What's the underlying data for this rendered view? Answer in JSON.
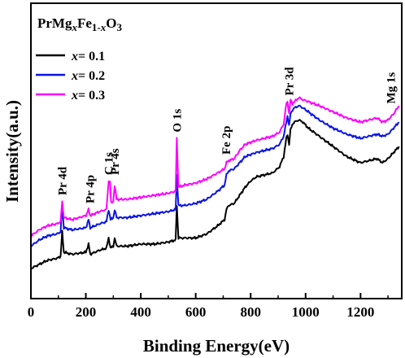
{
  "chart_data": {
    "type": "line",
    "title": {
      "prefix": "PrMg",
      "sub_x": "x",
      "mid": "Fe",
      "sub_mid": "1-",
      "sub_mid_x": "x",
      "suffix": "O",
      "sub_o": "3"
    },
    "xlabel": "Binding Energy(eV)",
    "ylabel": "Intensity(a.u.)",
    "xlim": [
      0,
      1350
    ],
    "ylim": [
      0,
      1
    ],
    "x_ticks": [
      0,
      200,
      400,
      600,
      800,
      1000,
      1200
    ],
    "grid": false,
    "legend_position": "top-left",
    "series": [
      {
        "name_x": "x",
        "name_rest": "= 0.1",
        "color": "#000000",
        "points": [
          [
            0,
            0.04
          ],
          [
            30,
            0.06
          ],
          [
            60,
            0.08
          ],
          [
            95,
            0.09
          ],
          [
            108,
            0.1
          ],
          [
            114,
            0.22
          ],
          [
            120,
            0.12
          ],
          [
            150,
            0.11
          ],
          [
            200,
            0.12
          ],
          [
            210,
            0.16
          ],
          [
            216,
            0.11
          ],
          [
            250,
            0.13
          ],
          [
            275,
            0.14
          ],
          [
            283,
            0.19
          ],
          [
            290,
            0.14
          ],
          [
            300,
            0.15
          ],
          [
            305,
            0.19
          ],
          [
            312,
            0.15
          ],
          [
            350,
            0.15
          ],
          [
            400,
            0.16
          ],
          [
            450,
            0.16
          ],
          [
            500,
            0.17
          ],
          [
            527,
            0.18
          ],
          [
            531,
            0.35
          ],
          [
            537,
            0.19
          ],
          [
            560,
            0.19
          ],
          [
            600,
            0.19
          ],
          [
            640,
            0.21
          ],
          [
            680,
            0.25
          ],
          [
            705,
            0.28
          ],
          [
            712,
            0.33
          ],
          [
            720,
            0.35
          ],
          [
            740,
            0.36
          ],
          [
            760,
            0.4
          ],
          [
            780,
            0.44
          ],
          [
            800,
            0.47
          ],
          [
            820,
            0.49
          ],
          [
            850,
            0.5
          ],
          [
            880,
            0.51
          ],
          [
            905,
            0.54
          ],
          [
            920,
            0.59
          ],
          [
            930,
            0.68
          ],
          [
            934,
            0.7
          ],
          [
            940,
            0.65
          ],
          [
            945,
            0.72
          ],
          [
            952,
            0.75
          ],
          [
            960,
            0.76
          ],
          [
            975,
            0.77
          ],
          [
            990,
            0.76
          ],
          [
            1010,
            0.73
          ],
          [
            1050,
            0.69
          ],
          [
            1100,
            0.64
          ],
          [
            1150,
            0.59
          ],
          [
            1200,
            0.56
          ],
          [
            1230,
            0.57
          ],
          [
            1260,
            0.58
          ],
          [
            1280,
            0.56
          ],
          [
            1300,
            0.58
          ],
          [
            1320,
            0.61
          ],
          [
            1340,
            0.64
          ]
        ]
      },
      {
        "name_x": "x",
        "name_rest": "= 0.2",
        "color": "#0a14e6",
        "points": [
          [
            0,
            0.15
          ],
          [
            30,
            0.18
          ],
          [
            60,
            0.2
          ],
          [
            95,
            0.21
          ],
          [
            108,
            0.22
          ],
          [
            114,
            0.35
          ],
          [
            120,
            0.24
          ],
          [
            150,
            0.23
          ],
          [
            200,
            0.24
          ],
          [
            210,
            0.28
          ],
          [
            216,
            0.24
          ],
          [
            250,
            0.26
          ],
          [
            275,
            0.27
          ],
          [
            283,
            0.33
          ],
          [
            290,
            0.28
          ],
          [
            300,
            0.29
          ],
          [
            305,
            0.33
          ],
          [
            312,
            0.29
          ],
          [
            350,
            0.29
          ],
          [
            400,
            0.3
          ],
          [
            450,
            0.31
          ],
          [
            500,
            0.32
          ],
          [
            527,
            0.33
          ],
          [
            531,
            0.5
          ],
          [
            537,
            0.35
          ],
          [
            560,
            0.35
          ],
          [
            600,
            0.36
          ],
          [
            640,
            0.38
          ],
          [
            680,
            0.42
          ],
          [
            705,
            0.45
          ],
          [
            712,
            0.5
          ],
          [
            720,
            0.52
          ],
          [
            740,
            0.53
          ],
          [
            760,
            0.56
          ],
          [
            780,
            0.59
          ],
          [
            800,
            0.6
          ],
          [
            820,
            0.61
          ],
          [
            850,
            0.62
          ],
          [
            880,
            0.63
          ],
          [
            905,
            0.65
          ],
          [
            920,
            0.69
          ],
          [
            930,
            0.76
          ],
          [
            934,
            0.79
          ],
          [
            940,
            0.74
          ],
          [
            945,
            0.8
          ],
          [
            952,
            0.82
          ],
          [
            960,
            0.83
          ],
          [
            975,
            0.84
          ],
          [
            990,
            0.83
          ],
          [
            1010,
            0.81
          ],
          [
            1050,
            0.77
          ],
          [
            1100,
            0.73
          ],
          [
            1150,
            0.7
          ],
          [
            1200,
            0.68
          ],
          [
            1230,
            0.69
          ],
          [
            1260,
            0.7
          ],
          [
            1280,
            0.69
          ],
          [
            1300,
            0.7
          ],
          [
            1320,
            0.73
          ],
          [
            1340,
            0.76
          ]
        ]
      },
      {
        "name_x": "x",
        "name_rest": "= 0.3",
        "color": "#ff00ff",
        "points": [
          [
            0,
            0.2
          ],
          [
            30,
            0.23
          ],
          [
            60,
            0.25
          ],
          [
            95,
            0.26
          ],
          [
            108,
            0.27
          ],
          [
            114,
            0.37
          ],
          [
            120,
            0.29
          ],
          [
            150,
            0.28
          ],
          [
            200,
            0.3
          ],
          [
            210,
            0.33
          ],
          [
            216,
            0.3
          ],
          [
            250,
            0.32
          ],
          [
            275,
            0.33
          ],
          [
            283,
            0.47
          ],
          [
            288,
            0.47
          ],
          [
            292,
            0.36
          ],
          [
            300,
            0.37
          ],
          [
            305,
            0.45
          ],
          [
            312,
            0.38
          ],
          [
            350,
            0.38
          ],
          [
            400,
            0.39
          ],
          [
            450,
            0.4
          ],
          [
            500,
            0.41
          ],
          [
            527,
            0.42
          ],
          [
            531,
            0.68
          ],
          [
            537,
            0.44
          ],
          [
            560,
            0.45
          ],
          [
            600,
            0.46
          ],
          [
            640,
            0.48
          ],
          [
            680,
            0.51
          ],
          [
            705,
            0.53
          ],
          [
            712,
            0.56
          ],
          [
            720,
            0.57
          ],
          [
            740,
            0.58
          ],
          [
            760,
            0.62
          ],
          [
            780,
            0.65
          ],
          [
            800,
            0.66
          ],
          [
            820,
            0.67
          ],
          [
            850,
            0.68
          ],
          [
            880,
            0.69
          ],
          [
            905,
            0.71
          ],
          [
            920,
            0.75
          ],
          [
            930,
            0.85
          ],
          [
            934,
            0.86
          ],
          [
            940,
            0.8
          ],
          [
            945,
            0.87
          ],
          [
            952,
            0.85
          ],
          [
            960,
            0.86
          ],
          [
            975,
            0.88
          ],
          [
            990,
            0.87
          ],
          [
            1010,
            0.86
          ],
          [
            1050,
            0.84
          ],
          [
            1100,
            0.81
          ],
          [
            1150,
            0.78
          ],
          [
            1200,
            0.76
          ],
          [
            1230,
            0.77
          ],
          [
            1260,
            0.78
          ],
          [
            1280,
            0.76
          ],
          [
            1300,
            0.77
          ],
          [
            1320,
            0.8
          ],
          [
            1340,
            0.84
          ]
        ]
      }
    ],
    "annotations": [
      {
        "text": "Pr 4d",
        "x": 114,
        "y": 0.4
      },
      {
        "text": "Pr 4p",
        "x": 215,
        "y": 0.36
      },
      {
        "text": "C 1s",
        "x": 283,
        "y": 0.5
      },
      {
        "text": "Pr 4s",
        "x": 305,
        "y": 0.5
      },
      {
        "text": "O 1s",
        "x": 531,
        "y": 0.71
      },
      {
        "text": "Fe 2p",
        "x": 710,
        "y": 0.6
      },
      {
        "text": "Pr 3d",
        "x": 940,
        "y": 0.89
      },
      {
        "text": "Mg 1s",
        "x": 1310,
        "y": 0.85
      }
    ]
  }
}
